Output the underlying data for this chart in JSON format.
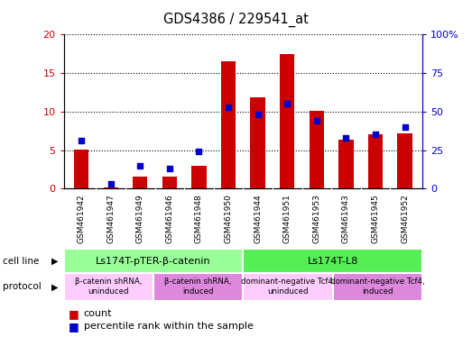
{
  "title": "GDS4386 / 229541_at",
  "samples": [
    "GSM461942",
    "GSM461947",
    "GSM461949",
    "GSM461946",
    "GSM461948",
    "GSM461950",
    "GSM461944",
    "GSM461951",
    "GSM461953",
    "GSM461943",
    "GSM461945",
    "GSM461952"
  ],
  "counts": [
    5.1,
    0.2,
    1.6,
    1.5,
    3.0,
    16.5,
    11.8,
    17.5,
    10.1,
    6.3,
    7.1,
    7.2
  ],
  "percentiles": [
    31,
    3,
    15,
    13,
    24,
    53,
    48,
    55,
    44,
    33,
    35,
    40
  ],
  "ylim_left": [
    0,
    20
  ],
  "ylim_right": [
    0,
    100
  ],
  "yticks_left": [
    0,
    5,
    10,
    15,
    20
  ],
  "yticks_right": [
    0,
    25,
    50,
    75,
    100
  ],
  "ytick_labels_right": [
    "0",
    "25",
    "50",
    "75",
    "100%"
  ],
  "bar_color": "#cc0000",
  "dot_color": "#0000cc",
  "cell_line_groups": [
    {
      "label": "Ls174T-pTER-β-catenin",
      "start": 0,
      "end": 6,
      "color": "#99ff99"
    },
    {
      "label": "Ls174T-L8",
      "start": 6,
      "end": 12,
      "color": "#55ee55"
    }
  ],
  "protocol_groups": [
    {
      "label": "β-catenin shRNA,\nuninduced",
      "start": 0,
      "end": 3,
      "color": "#ffccff"
    },
    {
      "label": "β-catenin shRNA,\ninduced",
      "start": 3,
      "end": 6,
      "color": "#dd88dd"
    },
    {
      "label": "dominant-negative Tcf4,\nuninduced",
      "start": 6,
      "end": 9,
      "color": "#ffccff"
    },
    {
      "label": "dominant-negative Tcf4,\ninduced",
      "start": 9,
      "end": 12,
      "color": "#dd88dd"
    }
  ],
  "sample_bg_color": "#c8c8c8",
  "left_label_color": "#cc0000",
  "right_label_color": "#0000cc",
  "bar_width": 0.5,
  "dot_size": 22,
  "figsize": [
    5.23,
    3.84
  ],
  "dpi": 100
}
